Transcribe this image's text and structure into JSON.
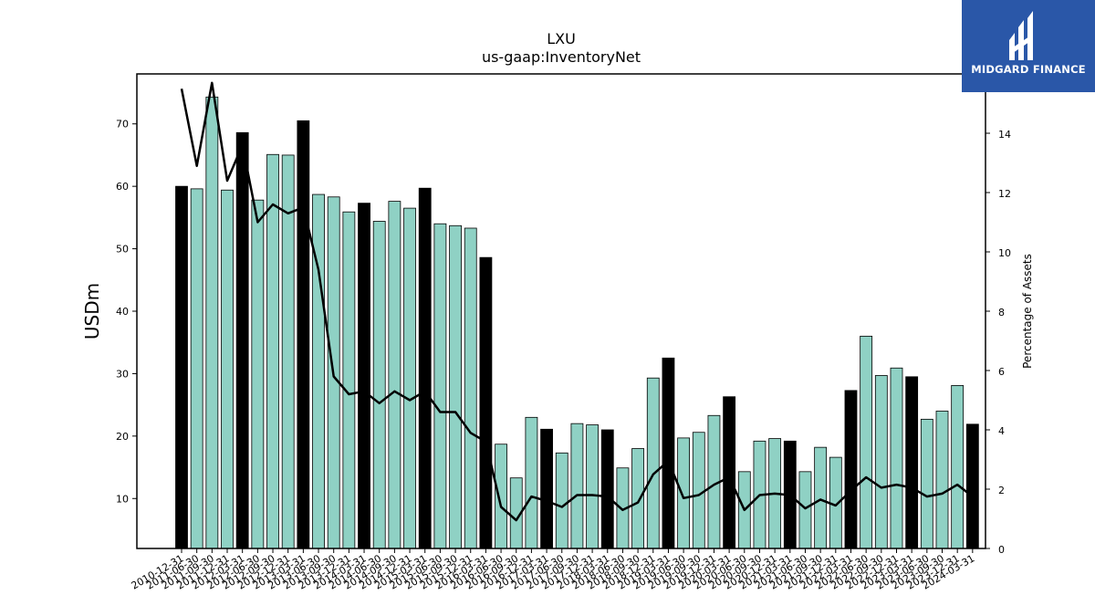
{
  "chart_data": {
    "type": "bar",
    "title": "LXU",
    "subtitle": "us-gaap:InventoryNet",
    "ylabel": "USDm",
    "y2label": "Percentage of Assets",
    "ylim": [
      2,
      78
    ],
    "y2lim": [
      0,
      16
    ],
    "yticks": [
      10,
      20,
      30,
      40,
      50,
      60,
      70
    ],
    "y2ticks": [
      0,
      2,
      4,
      6,
      8,
      10,
      12,
      14,
      16
    ],
    "categories": [
      "2010-12-31",
      "2011-06-30",
      "2011-09-30",
      "2011-12-31",
      "2012-03-31",
      "2012-06-30",
      "2012-09-30",
      "2012-12-31",
      "2013-03-31",
      "2013-06-30",
      "2013-09-30",
      "2013-12-31",
      "2014-03-31",
      "2014-06-30",
      "2014-09-30",
      "2014-12-31",
      "2015-03-31",
      "2015-06-30",
      "2015-09-30",
      "2015-12-31",
      "2016-03-31",
      "2016-06-30",
      "2016-09-30",
      "2016-12-31",
      "2017-03-31",
      "2017-06-30",
      "2017-09-30",
      "2017-12-31",
      "2018-03-31",
      "2018-06-30",
      "2018-09-30",
      "2018-12-31",
      "2019-03-31",
      "2019-06-30",
      "2019-09-30",
      "2019-12-31",
      "2020-03-31",
      "2020-06-30",
      "2020-09-30",
      "2020-12-31",
      "2021-03-31",
      "2021-06-30",
      "2021-09-30",
      "2021-12-31",
      "2022-03-31",
      "2022-06-30",
      "2022-09-30",
      "2022-12-31",
      "2023-03-31",
      "2023-06-30",
      "2023-09-30",
      "2023-12-31",
      "2024-03-31"
    ],
    "series": [
      {
        "values": [
          60.0,
          59.6,
          74.3,
          59.4,
          68.6,
          57.8,
          65.1,
          65.0,
          70.5,
          58.7,
          58.3,
          55.9,
          57.3,
          54.4,
          57.6,
          56.5,
          59.7,
          54.0,
          53.7,
          53.3,
          48.6,
          18.7,
          13.3,
          23.0,
          21.1,
          17.3,
          22.0,
          21.8,
          21.0,
          14.9,
          18.0,
          29.3,
          32.5,
          19.7,
          20.6,
          23.3,
          26.3,
          14.3,
          19.2,
          19.6,
          19.2,
          14.3,
          18.2,
          16.6,
          27.3,
          36.0,
          29.7,
          30.9,
          29.5,
          22.7,
          24.0,
          28.1,
          21.9
        ]
      },
      {
        "values": [
          15.5,
          12.9,
          15.7,
          12.4,
          13.6,
          11.0,
          11.6,
          11.3,
          11.5,
          9.4,
          5.8,
          5.2,
          5.3,
          4.9,
          5.3,
          5.0,
          5.3,
          4.6,
          4.6,
          3.9,
          3.6,
          1.4,
          0.95,
          1.75,
          1.6,
          1.4,
          1.8,
          1.8,
          1.75,
          1.3,
          1.55,
          2.5,
          2.95,
          1.7,
          1.8,
          2.15,
          2.4,
          1.3,
          1.8,
          1.85,
          1.8,
          1.35,
          1.65,
          1.45,
          1.95,
          2.4,
          2.05,
          2.15,
          2.05,
          1.75,
          1.85,
          2.15,
          1.75
        ]
      }
    ],
    "highlight_every": 4,
    "colors": {
      "bar": "#8fd1c4",
      "bar_highlight": "#000000",
      "line": "#000000",
      "axes": "#000000"
    }
  },
  "logo": {
    "text": "MIDGARD FINANCE",
    "icon": "midgard-logo-icon",
    "bg": "#2a57a8"
  }
}
